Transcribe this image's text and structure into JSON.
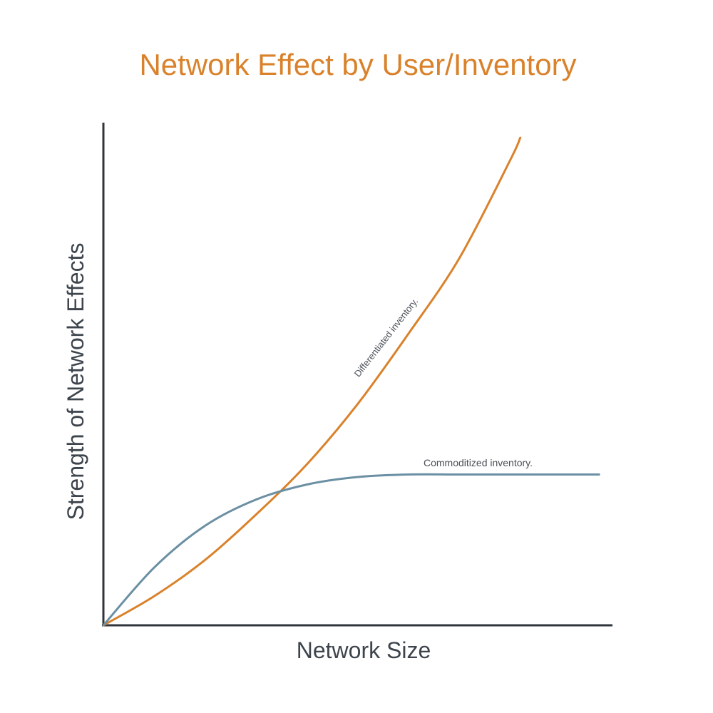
{
  "chart_data": {
    "type": "line",
    "title": "Network Effect by User/Inventory",
    "xlabel": "Network Size",
    "ylabel": "Strength of Network Effects",
    "xlim": [
      0,
      1
    ],
    "ylim": [
      0,
      1
    ],
    "grid": false,
    "legend": "none",
    "series": [
      {
        "name": "Differentiated inventory.",
        "color": "#d9822b",
        "x": [
          0,
          0.1,
          0.2,
          0.3,
          0.4,
          0.5,
          0.6,
          0.7,
          0.8,
          0.82
        ],
        "y": [
          0,
          0.058,
          0.13,
          0.22,
          0.32,
          0.44,
          0.58,
          0.73,
          0.925,
          0.97
        ]
      },
      {
        "name": "Commoditized inventory.",
        "color": "#6b8fa3",
        "x": [
          0,
          0.1,
          0.2,
          0.3,
          0.4,
          0.5,
          0.6,
          0.7,
          0.8,
          0.975
        ],
        "y": [
          0,
          0.115,
          0.198,
          0.25,
          0.28,
          0.295,
          0.3,
          0.3,
          0.3,
          0.3
        ]
      }
    ]
  },
  "colors": {
    "title": "#d9822b",
    "axis": "#2f353b"
  }
}
